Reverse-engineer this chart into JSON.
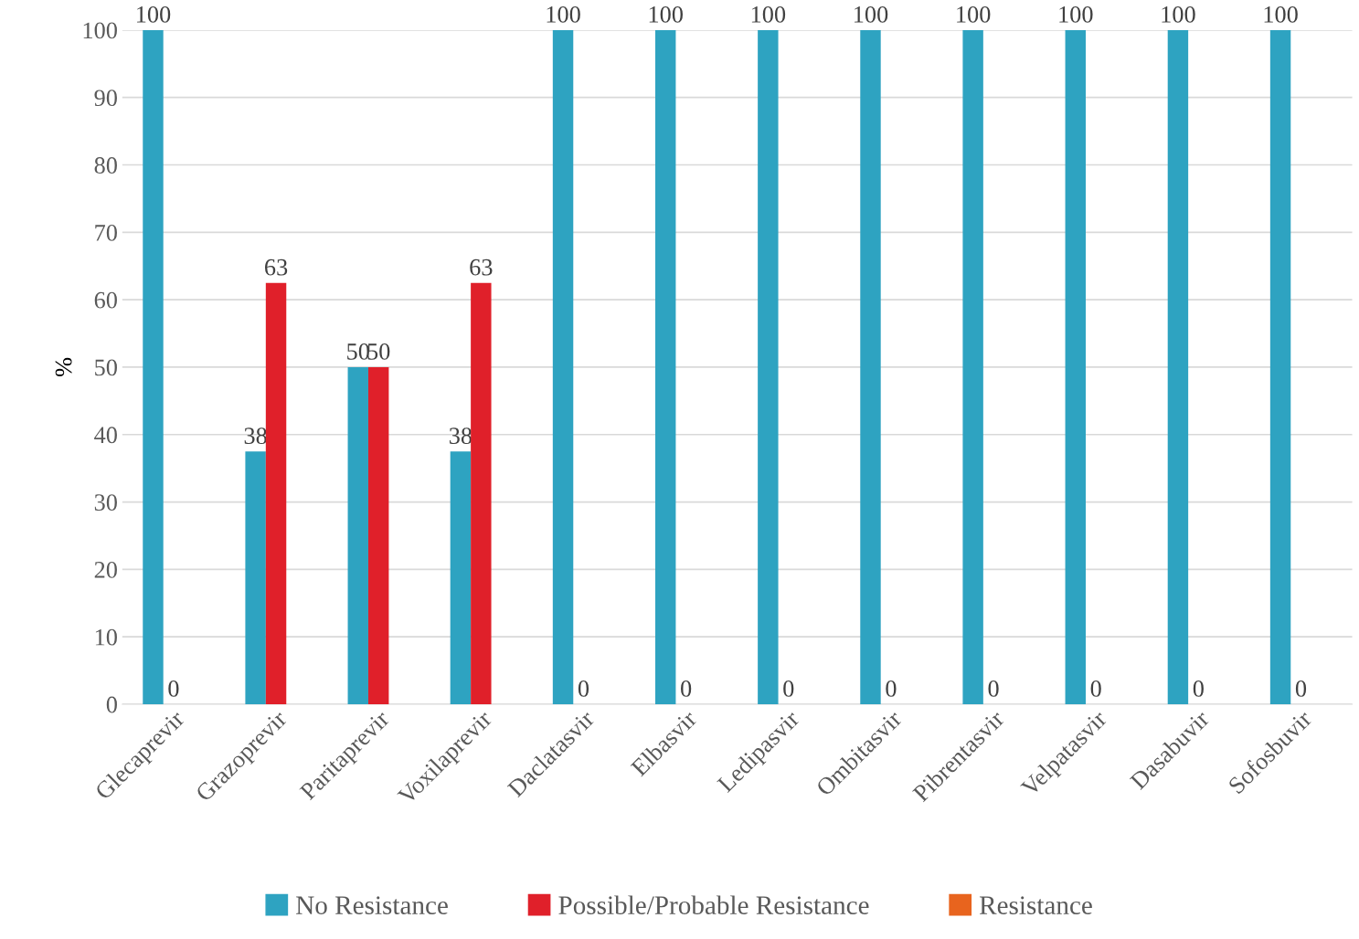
{
  "chart_data": {
    "type": "bar",
    "ylabel": "%",
    "categories": [
      "Glecaprevir",
      "Grazoprevir",
      "Paritaprevir",
      "Voxilaprevir",
      "Daclatasvir",
      "Elbasvir",
      "Ledipasvir",
      "Ombitasvir",
      "Pibrentasvir",
      "Velpatasvir",
      "Dasabuvir",
      "Sofosbuvir"
    ],
    "series": [
      {
        "name": "No Resistance",
        "color": "#2ea3c1",
        "values": [
          100,
          37.5,
          50,
          37.5,
          100,
          100,
          100,
          100,
          100,
          100,
          100,
          100
        ],
        "value_labels": [
          "100",
          "38",
          "50",
          "38",
          "100",
          "100",
          "100",
          "100",
          "100",
          "100",
          "100",
          "100"
        ]
      },
      {
        "name": "Possible/Probable Resistance",
        "color": "#e0202a",
        "values": [
          0,
          62.5,
          50,
          62.5,
          0,
          0,
          0,
          0,
          0,
          0,
          0,
          0
        ],
        "value_labels": [
          "0",
          "63",
          "50",
          "63",
          "0",
          "0",
          "0",
          "0",
          "0",
          "0",
          "0",
          "0"
        ]
      },
      {
        "name": "Resistance",
        "color": "#e8641e",
        "values": [
          0,
          0,
          0,
          0,
          0,
          0,
          0,
          0,
          0,
          0,
          0,
          0
        ],
        "value_labels": [
          null,
          null,
          null,
          null,
          null,
          null,
          null,
          null,
          null,
          null,
          null,
          null
        ]
      }
    ],
    "ylim": [
      0,
      100
    ],
    "yticks": [
      0,
      10,
      20,
      30,
      40,
      50,
      60,
      70,
      80,
      90,
      100
    ],
    "grid": "y",
    "legend": "bottom"
  }
}
